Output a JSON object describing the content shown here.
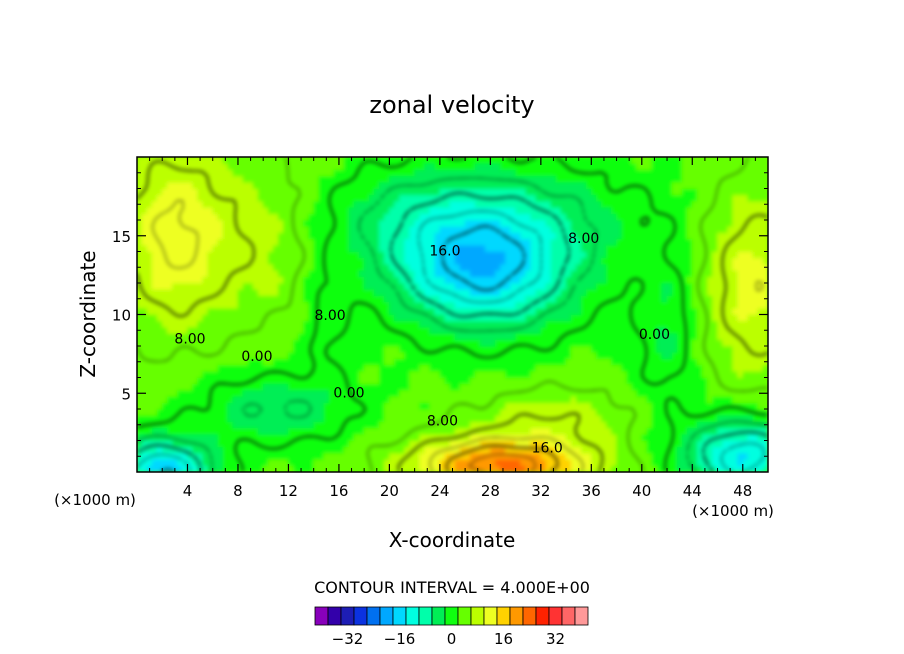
{
  "chart_data": {
    "type": "heatmap",
    "title": "zonal velocity",
    "xlabel": "X-coordinate",
    "ylabel": "Z-coordinate",
    "x_unit": "(×1000 m)",
    "xlim": [
      0,
      50
    ],
    "ylim": [
      0,
      20
    ],
    "x_ticks": [
      4,
      8,
      12,
      16,
      20,
      24,
      28,
      32,
      36,
      40,
      44,
      48
    ],
    "y_ticks": [
      5,
      10,
      15
    ],
    "contour_interval_text": "CONTOUR INTERVAL = 4.000E+00",
    "contour_labels": [
      {
        "text": "16.0",
        "x": 24.4,
        "z": 14.0
      },
      {
        "text": "8.00",
        "x": 35.4,
        "z": 14.8
      },
      {
        "text": "8.00",
        "x": 15.3,
        "z": 9.9
      },
      {
        "text": "8.00",
        "x": 4.2,
        "z": 8.4
      },
      {
        "text": "0.00",
        "x": 9.5,
        "z": 7.3
      },
      {
        "text": "0.00",
        "x": 41.0,
        "z": 8.7
      },
      {
        "text": "0.00",
        "x": 16.8,
        "z": 5.0
      },
      {
        "text": "8.00",
        "x": 24.2,
        "z": 3.2
      },
      {
        "text": "16.0",
        "x": 32.5,
        "z": 1.5
      }
    ],
    "colorbar": {
      "colors": [
        "#8800bb",
        "#3300aa",
        "#1d1db5",
        "#0b32e0",
        "#0070f0",
        "#00a8ff",
        "#00d8ff",
        "#00ffe0",
        "#00ffaa",
        "#00ee55",
        "#10ff10",
        "#66ff00",
        "#bbff00",
        "#eeff22",
        "#ffd200",
        "#ff9900",
        "#ff6600",
        "#ff2200",
        "#ff3333",
        "#ff6666",
        "#ff9999"
      ],
      "tick_labels": [
        "−32",
        "−16",
        "0",
        "16",
        "32"
      ],
      "tick_values": [
        -32,
        -16,
        0,
        16,
        32
      ],
      "min": -42,
      "max": 42
    }
  }
}
